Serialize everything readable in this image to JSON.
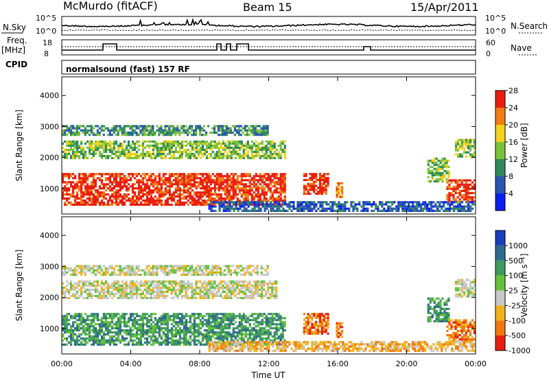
{
  "header": {
    "station": "McMurdo (fitACF)",
    "beam": "Beam 15",
    "date": "15/Apr/2011"
  },
  "top_panels": {
    "nsky_label": "N.Sky",
    "nsky_ticks": [
      "10^5",
      "10^0"
    ],
    "nsearch_label": "N.Search",
    "nsearch_ticks": [
      "10^5",
      "10^0"
    ],
    "freq_label": "Freq.",
    "freq_unit": "[MHz]",
    "freq_ticks": [
      "18",
      "8"
    ],
    "nave_label": "Nave",
    "nave_ticks": [
      "60",
      "0"
    ],
    "cpid_label": "CPID",
    "cpid_text": "normalsound (fast) 157 RF"
  },
  "time_axis": {
    "label": "Time UT",
    "ticks": [
      "00:00",
      "04:00",
      "08:00",
      "12:00",
      "16:00",
      "20:00",
      "00:00"
    ]
  },
  "chart_data": [
    {
      "type": "heatmap",
      "name": "power",
      "ylabel": "Slant Range [km]",
      "yticks": [
        1000,
        2000,
        3000,
        4000
      ],
      "ylim": [
        180,
        4600
      ],
      "xlim_hours": [
        0,
        24
      ],
      "colorbar": {
        "label": "Power [dB]",
        "ticks": [
          "4",
          "8",
          "12",
          "16",
          "20",
          "24",
          "28"
        ],
        "colors": [
          "#0a1ef0",
          "#2a55b0",
          "#2e8a5a",
          "#7cc23a",
          "#f2d21e",
          "#f27d12",
          "#e81e10"
        ]
      },
      "regions": [
        {
          "x": [
            0,
            13.0
          ],
          "y": [
            450,
            1500
          ],
          "level": 6
        },
        {
          "x": [
            0,
            13.0
          ],
          "y": [
            1950,
            2550
          ],
          "level": 3
        },
        {
          "x": [
            0,
            12.0
          ],
          "y": [
            2700,
            3050
          ],
          "level": 2
        },
        {
          "x": [
            14.0,
            15.5
          ],
          "y": [
            800,
            1500
          ],
          "level": 6
        },
        {
          "x": [
            15.9,
            16.3
          ],
          "y": [
            700,
            1200
          ],
          "level": 5
        },
        {
          "x": [
            21.2,
            22.5
          ],
          "y": [
            1200,
            2000
          ],
          "level": 3
        },
        {
          "x": [
            22.3,
            24
          ],
          "y": [
            550,
            1300
          ],
          "level": 6
        },
        {
          "x": [
            22.8,
            24
          ],
          "y": [
            2000,
            2600
          ],
          "level": 3
        },
        {
          "x": [
            8.5,
            24
          ],
          "y": [
            250,
            600
          ],
          "level": 1
        }
      ]
    },
    {
      "type": "heatmap",
      "name": "velocity",
      "ylabel": "Slant Range [km]",
      "yticks": [
        1000,
        2000,
        3000,
        4000
      ],
      "ylim": [
        180,
        4600
      ],
      "xlim_hours": [
        0,
        24
      ],
      "colorbar": {
        "label": "Velocity [m s⁻¹]",
        "ticks": [
          "1000",
          "500",
          "100",
          "25",
          "-25",
          "-100",
          "-500",
          "-1000"
        ],
        "colors": [
          "#1a3fbf",
          "#2e6a8f",
          "#3f9a5f",
          "#66c23a",
          "#c8c8c8",
          "#f2b21e",
          "#f2780e",
          "#e81e10"
        ]
      },
      "regions": [
        {
          "x": [
            0,
            13.0
          ],
          "y": [
            450,
            1500
          ],
          "level": 2
        },
        {
          "x": [
            0,
            12.5
          ],
          "y": [
            1950,
            2550
          ],
          "level": 4
        },
        {
          "x": [
            0,
            12.0
          ],
          "y": [
            2700,
            3050
          ],
          "level": 4
        },
        {
          "x": [
            14.0,
            15.5
          ],
          "y": [
            800,
            1500
          ],
          "level": 6
        },
        {
          "x": [
            15.9,
            16.3
          ],
          "y": [
            700,
            1200
          ],
          "level": 6
        },
        {
          "x": [
            21.2,
            22.5
          ],
          "y": [
            1200,
            2000
          ],
          "level": 2
        },
        {
          "x": [
            22.3,
            24
          ],
          "y": [
            550,
            1300
          ],
          "level": 6
        },
        {
          "x": [
            22.8,
            24
          ],
          "y": [
            2000,
            2600
          ],
          "level": 4
        },
        {
          "x": [
            8.5,
            24
          ],
          "y": [
            250,
            600
          ],
          "level": 5
        }
      ]
    }
  ]
}
